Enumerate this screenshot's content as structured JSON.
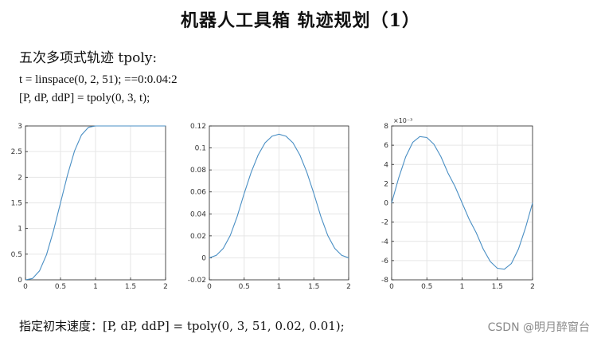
{
  "page": {
    "title": "机器人工具箱  轨迹规划（1）",
    "subtitle": "五次多项式轨迹 tpoly:",
    "code_line1": "t = linspace(0, 2, 51); ==0:0.04:2",
    "code_line2": "[P, dP, ddP] = tpoly(0, 3, t);",
    "footer": "指定初末速度：[P, dP, ddP] = tpoly(0, 3, 51, 0.02, 0.01);",
    "watermark": "CSDN @明月醉窗台"
  },
  "chart_data": [
    {
      "type": "line",
      "series": [
        {
          "x": [
            0,
            0.1,
            0.2,
            0.3,
            0.4,
            0.5,
            0.6,
            0.7,
            0.8,
            0.9,
            1.0,
            1.1,
            1.2,
            1.3,
            1.4,
            1.5,
            1.6,
            1.7,
            1.8,
            1.9,
            2.0
          ],
          "values": [
            0,
            0.026,
            0.174,
            0.489,
            0.957,
            1.5,
            2.043,
            2.511,
            2.826,
            2.974,
            3.0,
            3.0,
            3.0,
            3.0,
            3.0,
            3.0,
            3.0,
            3.0,
            3.0,
            3.0,
            3.0
          ]
        }
      ],
      "xlim": [
        0,
        2
      ],
      "ylim": [
        0,
        3
      ],
      "xticks": [
        0,
        0.5,
        1,
        1.5,
        2
      ],
      "xtick_labels": [
        "0",
        "0.5",
        "1",
        "1.5",
        "2"
      ],
      "yticks": [
        0,
        0.5,
        1,
        1.5,
        2,
        2.5,
        3
      ],
      "ytick_labels": [
        "0",
        "0.5",
        "1",
        "1.5",
        "2",
        "2.5",
        "3"
      ],
      "grid": true,
      "color": "#4a8fc4",
      "exponent_label": ""
    },
    {
      "type": "line",
      "series": [
        {
          "x": [
            0,
            0.1,
            0.2,
            0.3,
            0.4,
            0.5,
            0.6,
            0.7,
            0.8,
            0.9,
            1.0,
            1.1,
            1.2,
            1.3,
            1.4,
            1.5,
            1.6,
            1.7,
            1.8,
            1.9,
            2.0
          ],
          "values": [
            0,
            0.0023,
            0.0086,
            0.0203,
            0.0377,
            0.0586,
            0.0778,
            0.0935,
            0.1047,
            0.1107,
            0.1125,
            0.1107,
            0.1047,
            0.0935,
            0.0778,
            0.0586,
            0.0377,
            0.0203,
            0.0086,
            0.0023,
            0
          ]
        }
      ],
      "xlim": [
        0,
        2
      ],
      "ylim": [
        -0.02,
        0.12
      ],
      "xticks": [
        0,
        0.5,
        1,
        1.5,
        2
      ],
      "xtick_labels": [
        "0",
        "0.5",
        "1",
        "1.5",
        "2"
      ],
      "yticks": [
        -0.02,
        0,
        0.02,
        0.04,
        0.06,
        0.08,
        0.1,
        0.12
      ],
      "ytick_labels": [
        "-0.02",
        "0",
        "0.02",
        "0.04",
        "0.06",
        "0.08",
        "0.1",
        "0.12"
      ],
      "grid": true,
      "color": "#4a8fc4",
      "exponent_label": ""
    },
    {
      "type": "line",
      "series": [
        {
          "x": [
            0,
            0.1,
            0.2,
            0.3,
            0.4,
            0.5,
            0.6,
            0.7,
            0.8,
            0.9,
            1.0,
            1.1,
            1.2,
            1.3,
            1.4,
            1.5,
            1.6,
            1.7,
            1.8,
            1.9,
            2.0
          ],
          "values": [
            0,
            2.6,
            4.8,
            6.3,
            6.9,
            6.8,
            6.1,
            4.8,
            3.1,
            1.7,
            0,
            -1.7,
            -3.1,
            -4.8,
            -6.1,
            -6.8,
            -6.9,
            -6.3,
            -4.8,
            -2.6,
            0
          ]
        }
      ],
      "xlim": [
        0,
        2
      ],
      "ylim": [
        -8,
        8
      ],
      "xticks": [
        0,
        0.5,
        1,
        1.5,
        2
      ],
      "xtick_labels": [
        "0",
        "0.5",
        "1",
        "1.5",
        "2"
      ],
      "yticks": [
        -8,
        -6,
        -4,
        -2,
        0,
        2,
        4,
        6,
        8
      ],
      "ytick_labels": [
        "-8",
        "-6",
        "-4",
        "-2",
        "0",
        "2",
        "4",
        "6",
        "8"
      ],
      "grid": true,
      "color": "#4a8fc4",
      "exponent_label": "×10⁻³"
    }
  ]
}
